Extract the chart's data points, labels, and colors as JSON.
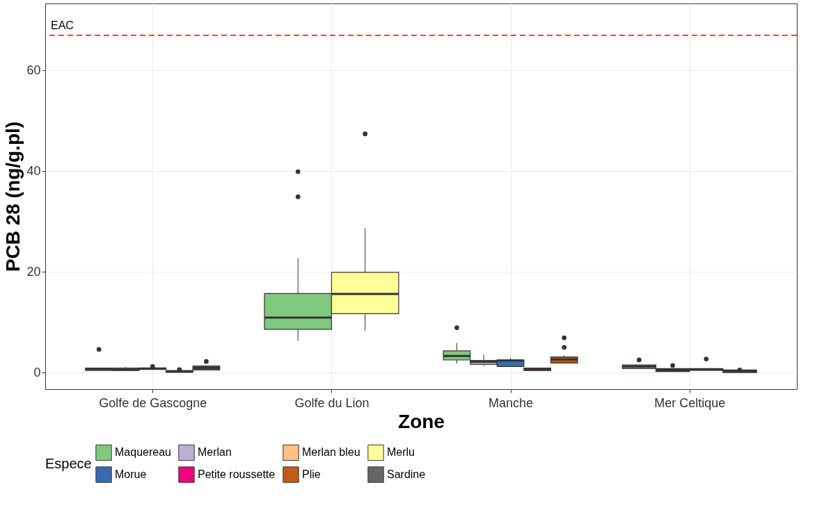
{
  "chart_data": {
    "type": "box",
    "xlabel": "Zone",
    "ylabel": "PCB 28 (ng/g.pl)",
    "legend_title": "Espece",
    "categories": [
      "Golfe de Gascogne",
      "Golfe du Lion",
      "Manche",
      "Mer Celtique"
    ],
    "ylim": [
      -3.3,
      73.3
    ],
    "yticks": [
      0,
      20,
      40,
      60
    ],
    "grid": true,
    "legend": "bottom",
    "ref_lines": [
      {
        "axis": "y",
        "value": 67,
        "label": "EAC",
        "color": "#ff0000",
        "line_style": "dashed"
      }
    ],
    "series": [
      {
        "name": "Maquereau",
        "color": "#7fc97f",
        "boxes": [
          {
            "low": 0.4,
            "q1": 0.4,
            "median": 0.7,
            "q3": 0.9,
            "high": 0.9,
            "outliers": [
              4.6
            ]
          },
          {
            "low": 6.3,
            "q1": 8.6,
            "median": 10.9,
            "q3": 15.7,
            "high": 22.7,
            "outliers": [
              39.9,
              34.9
            ]
          },
          {
            "low": 1.8,
            "q1": 2.5,
            "median": 3.3,
            "q3": 4.3,
            "high": 5.9,
            "outliers": [
              8.9
            ]
          },
          {
            "low": 0.8,
            "q1": 0.8,
            "median": 1.2,
            "q3": 1.5,
            "high": 1.5,
            "outliers": [
              2.5
            ]
          }
        ]
      },
      {
        "name": "Merlan",
        "color": "#beaed4",
        "boxes": [
          {
            "low": 0.4,
            "q1": 0.4,
            "median": 0.6,
            "q3": 0.9,
            "high": 1.1
          },
          null,
          {
            "low": 1.3,
            "q1": 1.6,
            "median": 2.1,
            "q3": 2.4,
            "high": 3.6
          },
          {
            "low": 0.2,
            "q1": 0.2,
            "median": 0.5,
            "q3": 0.8,
            "high": 0.8,
            "outliers": [
              1.4
            ]
          }
        ]
      },
      {
        "name": "Merlan bleu",
        "color": "#fdc086",
        "boxes": [
          {
            "low": 0.6,
            "q1": 0.6,
            "median": 0.8,
            "q3": 0.9,
            "high": 0.9,
            "outliers": [
              1.2
            ]
          },
          null,
          null,
          {
            "low": 0.45,
            "q1": 0.45,
            "median": 0.6,
            "q3": 0.8,
            "high": 0.8,
            "outliers": [
              2.7
            ]
          }
        ]
      },
      {
        "name": "Merlu",
        "color": "#ffff99",
        "boxes": [
          {
            "low": 0.05,
            "q1": 0.05,
            "median": 0.2,
            "q3": 0.4,
            "high": 0.4,
            "outliers": [
              0.6
            ]
          },
          {
            "low": 8.3,
            "q1": 11.7,
            "median": 15.6,
            "q3": 19.9,
            "high": 28.7,
            "outliers": [
              47.4
            ]
          },
          null,
          null
        ]
      },
      {
        "name": "Morue",
        "color": "#386cb0",
        "boxes": [
          null,
          null,
          {
            "low": 1.2,
            "q1": 1.2,
            "median": 2.4,
            "q3": 2.5,
            "high": 2.9
          },
          null
        ]
      },
      {
        "name": "Petite roussette",
        "color": "#f0027f",
        "boxes": [
          null,
          null,
          {
            "low": 0.4,
            "q1": 0.4,
            "median": 0.6,
            "q3": 0.9,
            "high": 0.9
          },
          null
        ]
      },
      {
        "name": "Plie",
        "color": "#bf5b17",
        "boxes": [
          null,
          null,
          {
            "low": 1.9,
            "q1": 1.9,
            "median": 2.6,
            "q3": 3.1,
            "high": 3.4,
            "outliers": [
              6.9,
              5.0
            ]
          },
          null
        ]
      },
      {
        "name": "Sardine",
        "color": "#666666",
        "boxes": [
          {
            "low": 0.5,
            "q1": 0.5,
            "median": 0.9,
            "q3": 1.3,
            "high": 1.3,
            "outliers": [
              2.2
            ]
          },
          null,
          null,
          {
            "low": 0.0,
            "q1": 0.0,
            "median": 0.3,
            "q3": 0.5,
            "high": 0.5,
            "outliers": [
              0.5
            ]
          }
        ]
      }
    ]
  }
}
